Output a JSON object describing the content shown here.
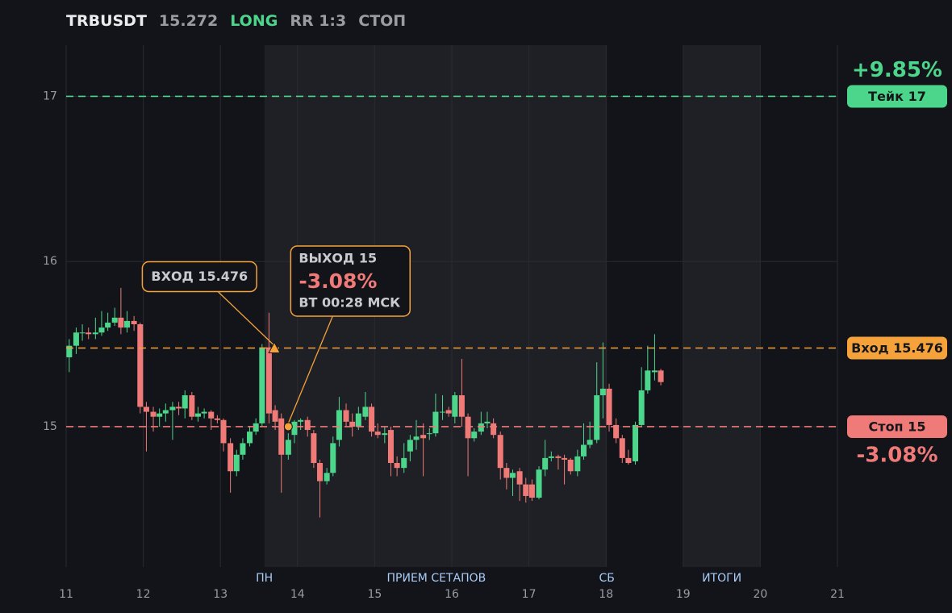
{
  "chart_data": {
    "type": "candlestick",
    "symbol": "TRBUSDT",
    "last_price": 15.272,
    "side": "LONG",
    "rr": "RR 1:3",
    "status": "СТОП",
    "up_color": "#4cd68b",
    "down_color": "#ef7a78",
    "xlim": [
      11,
      21
    ],
    "xticks": [
      11,
      12,
      13,
      14,
      15,
      16,
      17,
      18,
      19,
      20,
      21
    ],
    "ylim": [
      14.15,
      17.31
    ],
    "yticks": [
      15,
      16,
      17
    ],
    "grid": true,
    "shaded": [
      [
        13.57,
        18.01
      ],
      [
        19,
        20
      ]
    ],
    "sessions": [
      {
        "label": "ПН",
        "x": 13.57
      },
      {
        "label": "ПРИЕМ СЕТАПОВ",
        "x": 15.8
      },
      {
        "label": "СБ",
        "x": 18.01
      },
      {
        "label": "ИТОГИ",
        "x": 19.5
      }
    ],
    "levels": [
      {
        "value": 17,
        "label": "Тейк 17",
        "color": "#4cd68b",
        "change": "+9.85%"
      },
      {
        "value": 15.476,
        "label": "Вход 15.476",
        "color": "#f5a23a"
      },
      {
        "value": 15,
        "label": "Стоп 15",
        "color": "#ef7a78",
        "change": "-3.08%"
      }
    ],
    "annotations": {
      "entry": {
        "label": "ВХОД 15.476",
        "x": 13.7,
        "y": 15.476
      },
      "exit": {
        "lines": [
          "ВЫХОД 15",
          "-3.08%",
          "ВТ 00:28 МСК"
        ],
        "x": 13.88,
        "y": 15
      }
    },
    "x": [
      11.04,
      11.13,
      11.21,
      11.29,
      11.38,
      11.46,
      11.54,
      11.63,
      11.71,
      11.79,
      11.88,
      11.96,
      12.04,
      12.13,
      12.21,
      12.29,
      12.38,
      12.46,
      12.54,
      12.63,
      12.71,
      12.79,
      12.88,
      12.96,
      13.04,
      13.13,
      13.21,
      13.29,
      13.38,
      13.46,
      13.54,
      13.63,
      13.71,
      13.79,
      13.88,
      13.96,
      14.04,
      14.13,
      14.21,
      14.29,
      14.38,
      14.46,
      14.54,
      14.63,
      14.71,
      14.79,
      14.88,
      14.96,
      15.04,
      15.13,
      15.21,
      15.29,
      15.38,
      15.46,
      15.54,
      15.63,
      15.71,
      15.79,
      15.88,
      15.96,
      16.04,
      16.13,
      16.21,
      16.29,
      16.38,
      16.46,
      16.54,
      16.63,
      16.71,
      16.79,
      16.88,
      16.96,
      17.04,
      17.13,
      17.21,
      17.29,
      17.38,
      17.46,
      17.54,
      17.63,
      17.71,
      17.79,
      17.88,
      17.96,
      18.04,
      18.13,
      18.21,
      18.29,
      18.38,
      18.46,
      18.54,
      18.63,
      18.71
    ],
    "open": [
      15.42,
      15.49,
      15.57,
      15.57,
      15.56,
      15.57,
      15.6,
      15.63,
      15.66,
      15.6,
      15.64,
      15.62,
      15.12,
      15.09,
      15.06,
      15.08,
      15.1,
      15.12,
      15.11,
      15.19,
      15.06,
      15.08,
      15.09,
      15.05,
      15.04,
      14.9,
      14.73,
      14.83,
      14.9,
      14.97,
      15.02,
      15.48,
      15.1,
      15.05,
      14.83,
      14.95,
      15.03,
      15.04,
      14.96,
      14.78,
      14.67,
      14.72,
      14.92,
      15.1,
      15.03,
      15.0,
      15.06,
      15.12,
      14.97,
      14.95,
      14.98,
      14.78,
      14.75,
      14.85,
      14.92,
      14.95,
      14.96,
      14.96,
      15.09,
      15.1,
      15.06,
      15.19,
      15.06,
      14.93,
      14.97,
      15.02,
      15.02,
      14.95,
      14.75,
      14.69,
      14.73,
      14.65,
      14.65,
      14.57,
      14.74,
      14.81,
      14.82,
      14.81,
      14.8,
      14.73,
      14.82,
      14.89,
      14.92,
      15.19,
      15.23,
      15.01,
      14.93,
      14.81,
      14.79,
      15.01,
      15.22,
      15.33,
      15.34
    ],
    "high": [
      15.53,
      15.6,
      15.62,
      15.6,
      15.66,
      15.7,
      15.69,
      15.72,
      15.84,
      15.7,
      15.67,
      15.63,
      15.15,
      15.12,
      15.11,
      15.14,
      15.15,
      15.15,
      15.22,
      15.21,
      15.12,
      15.11,
      15.1,
      15.07,
      15.05,
      14.93,
      14.86,
      14.93,
      15.0,
      15.05,
      15.5,
      15.69,
      15.13,
      15.08,
      14.96,
      15.04,
      15.05,
      15.06,
      14.98,
      14.8,
      14.75,
      14.94,
      15.18,
      15.14,
      15.08,
      15.12,
      15.21,
      15.14,
      15.02,
      15.0,
      15.0,
      14.82,
      14.9,
      14.95,
      15.04,
      15.02,
      14.99,
      15.2,
      15.19,
      15.12,
      15.21,
      15.41,
      15.08,
      14.99,
      15.09,
      15.09,
      15.05,
      14.97,
      14.78,
      14.74,
      14.75,
      14.69,
      14.68,
      14.76,
      14.92,
      14.85,
      14.83,
      14.83,
      14.81,
      14.86,
      15.02,
      15.03,
      15.39,
      15.51,
      15.26,
      15.05,
      14.95,
      14.86,
      15.03,
      15.36,
      15.49,
      15.56,
      15.35
    ],
    "low": [
      15.33,
      15.44,
      15.52,
      15.53,
      15.53,
      15.55,
      15.58,
      15.61,
      15.56,
      15.57,
      15.58,
      15.08,
      14.85,
      14.97,
      15.0,
      15.03,
      14.92,
      15.07,
      15.05,
      15.04,
      15.03,
      15.05,
      14.98,
      15.02,
      14.85,
      14.6,
      14.7,
      14.8,
      14.88,
      14.95,
      15.0,
      15.02,
      14.98,
      14.6,
      14.8,
      14.9,
      14.98,
      14.94,
      14.75,
      14.45,
      14.65,
      14.7,
      14.88,
      15.0,
      14.94,
      14.98,
      15.04,
      14.94,
      14.93,
      14.9,
      14.7,
      14.7,
      14.72,
      14.79,
      14.86,
      14.7,
      14.92,
      14.94,
      15.04,
      15.06,
      15.02,
      15.0,
      14.7,
      14.91,
      14.95,
      14.99,
      14.93,
      14.68,
      14.62,
      14.58,
      14.55,
      14.54,
      14.55,
      14.56,
      14.7,
      14.79,
      14.74,
      14.65,
      14.71,
      14.7,
      14.8,
      14.87,
      14.9,
      15.05,
      14.97,
      14.9,
      14.78,
      14.77,
      14.77,
      15.0,
      15.2,
      15.28,
      15.25
    ],
    "close": [
      15.49,
      15.57,
      15.57,
      15.56,
      15.57,
      15.6,
      15.63,
      15.66,
      15.6,
      15.64,
      15.62,
      15.12,
      15.09,
      15.06,
      15.08,
      15.1,
      15.12,
      15.11,
      15.19,
      15.06,
      15.08,
      15.09,
      15.05,
      15.04,
      14.9,
      14.73,
      14.83,
      14.9,
      14.97,
      15.02,
      15.48,
      15.08,
      15.03,
      14.83,
      14.92,
      15.03,
      15.04,
      14.98,
      14.78,
      14.67,
      14.72,
      14.9,
      15.1,
      15.03,
      15.0,
      15.08,
      15.12,
      14.97,
      14.95,
      14.96,
      14.78,
      14.75,
      14.81,
      14.92,
      14.94,
      14.93,
      14.96,
      15.09,
      15.09,
      15.08,
      15.19,
      15.06,
      14.93,
      14.97,
      15.02,
      15.03,
      14.95,
      14.75,
      14.69,
      14.72,
      14.65,
      14.58,
      14.57,
      14.74,
      14.81,
      14.82,
      14.81,
      14.8,
      14.73,
      14.82,
      14.89,
      14.92,
      15.19,
      15.23,
      15.01,
      14.93,
      14.81,
      14.78,
      15.01,
      15.22,
      15.34,
      15.34,
      15.27
    ]
  }
}
